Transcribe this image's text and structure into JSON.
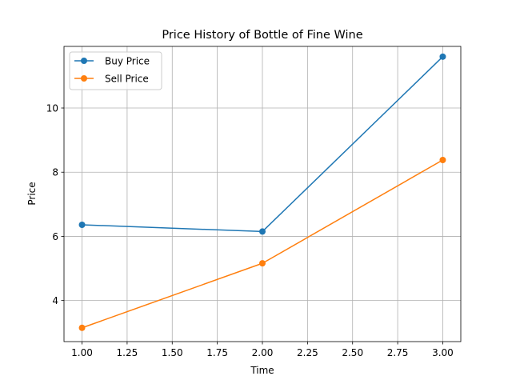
{
  "chart_data": {
    "type": "line",
    "title": "Price History of Bottle of Fine Wine",
    "xlabel": "Time",
    "ylabel": "Price",
    "x": [
      1.0,
      2.0,
      3.0
    ],
    "xlim": [
      0.9,
      3.1
    ],
    "ylim": [
      2.72,
      11.92
    ],
    "xticks": [
      1.0,
      1.25,
      1.5,
      1.75,
      2.0,
      2.25,
      2.5,
      2.75,
      3.0
    ],
    "xtick_labels": [
      "1.00",
      "1.25",
      "1.50",
      "1.75",
      "2.00",
      "2.25",
      "2.50",
      "2.75",
      "3.00"
    ],
    "yticks": [
      4,
      6,
      8,
      10
    ],
    "ytick_labels": [
      "4",
      "6",
      "8",
      "10"
    ],
    "grid": true,
    "legend_position": "top-left",
    "series": [
      {
        "name": "Buy Price",
        "values": [
          6.36,
          6.15,
          11.6
        ],
        "color": "#1f77b4",
        "marker": "circle"
      },
      {
        "name": "Sell Price",
        "values": [
          3.15,
          5.16,
          8.38
        ],
        "color": "#ff7f0e",
        "marker": "circle"
      }
    ]
  }
}
